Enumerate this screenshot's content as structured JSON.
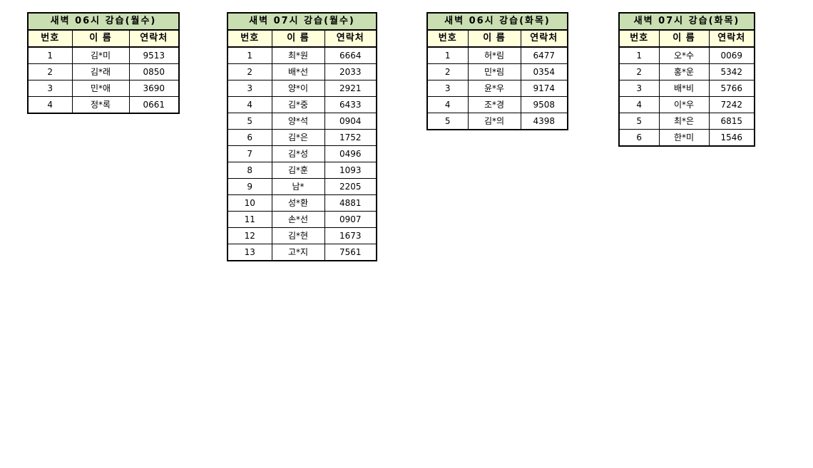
{
  "colors": {
    "title_bg": "#C9DFB2",
    "header_bg": "#FFFFDC",
    "border": "#000000",
    "page_bg": "#FFFFFF"
  },
  "tables": [
    {
      "title": "새벽 06시 강습(월수)",
      "columns": [
        "번호",
        "이 름",
        "연락처"
      ],
      "rows": [
        [
          "1",
          "김*미",
          "9513"
        ],
        [
          "2",
          "김*래",
          "0850"
        ],
        [
          "3",
          "민*애",
          "3690"
        ],
        [
          "4",
          "정*록",
          "0661"
        ]
      ]
    },
    {
      "title": "새벽 07시 강습(월수)",
      "columns": [
        "번호",
        "이 름",
        "연락처"
      ],
      "rows": [
        [
          "1",
          "최*원",
          "6664"
        ],
        [
          "2",
          "배*선",
          "2033"
        ],
        [
          "3",
          "양*이",
          "2921"
        ],
        [
          "4",
          "김*중",
          "6433"
        ],
        [
          "5",
          "양*석",
          "0904"
        ],
        [
          "6",
          "김*은",
          "1752"
        ],
        [
          "7",
          "김*성",
          "0496"
        ],
        [
          "8",
          "김*훈",
          "1093"
        ],
        [
          "9",
          "남*",
          "2205"
        ],
        [
          "10",
          "성*환",
          "4881"
        ],
        [
          "11",
          "손*선",
          "0907"
        ],
        [
          "12",
          "김*현",
          "1673"
        ],
        [
          "13",
          "고*지",
          "7561"
        ]
      ]
    },
    {
      "title": "새벽 06시 강습(화목)",
      "columns": [
        "번호",
        "이 름",
        "연락처"
      ],
      "rows": [
        [
          "1",
          "허*림",
          "6477"
        ],
        [
          "2",
          "민*림",
          "0354"
        ],
        [
          "3",
          "윤*우",
          "9174"
        ],
        [
          "4",
          "조*경",
          "9508"
        ],
        [
          "5",
          "김*의",
          "4398"
        ]
      ]
    },
    {
      "title": "새벽 07시 강습(화목)",
      "columns": [
        "번호",
        "이 름",
        "연락처"
      ],
      "rows": [
        [
          "1",
          "오*수",
          "0069"
        ],
        [
          "2",
          "홍*운",
          "5342"
        ],
        [
          "3",
          "배*비",
          "5766"
        ],
        [
          "4",
          "이*우",
          "7242"
        ],
        [
          "5",
          "최*은",
          "6815"
        ],
        [
          "6",
          "한*미",
          "1546"
        ]
      ]
    }
  ]
}
